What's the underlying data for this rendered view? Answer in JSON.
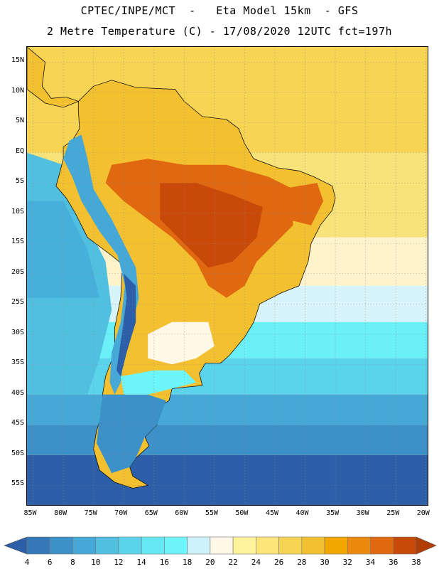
{
  "header": {
    "title_line1": "CPTEC/INPE/MCT  -   Eta Model 15km  - GFS",
    "title_line2": "2 Metre Temperature (C) - 17/08/2020 12UTC fct=197h"
  },
  "map": {
    "region": "South America",
    "lon_range": [
      -86,
      -19.5
    ],
    "lat_range": [
      -58.5,
      17.5
    ],
    "lat_ticks": [
      {
        "value": 15,
        "label": "15N"
      },
      {
        "value": 10,
        "label": "10N"
      },
      {
        "value": 5,
        "label": "5N"
      },
      {
        "value": 0,
        "label": "EQ"
      },
      {
        "value": -5,
        "label": "5S"
      },
      {
        "value": -10,
        "label": "10S"
      },
      {
        "value": -15,
        "label": "15S"
      },
      {
        "value": -20,
        "label": "20S"
      },
      {
        "value": -25,
        "label": "25S"
      },
      {
        "value": -30,
        "label": "30S"
      },
      {
        "value": -35,
        "label": "35S"
      },
      {
        "value": -40,
        "label": "40S"
      },
      {
        "value": -45,
        "label": "45S"
      },
      {
        "value": -50,
        "label": "50S"
      },
      {
        "value": -55,
        "label": "55S"
      }
    ],
    "lon_ticks": [
      {
        "value": -85,
        "label": "85W"
      },
      {
        "value": -80,
        "label": "80W"
      },
      {
        "value": -75,
        "label": "75W"
      },
      {
        "value": -70,
        "label": "70W"
      },
      {
        "value": -65,
        "label": "65W"
      },
      {
        "value": -60,
        "label": "60W"
      },
      {
        "value": -55,
        "label": "55W"
      },
      {
        "value": -50,
        "label": "50W"
      },
      {
        "value": -45,
        "label": "45W"
      },
      {
        "value": -40,
        "label": "40W"
      },
      {
        "value": -35,
        "label": "35W"
      },
      {
        "value": -30,
        "label": "30W"
      },
      {
        "value": -25,
        "label": "25W"
      },
      {
        "value": -20,
        "label": "20W"
      }
    ]
  },
  "colorbar": {
    "unit": "C",
    "levels": [
      "4",
      "6",
      "8",
      "10",
      "12",
      "14",
      "16",
      "18",
      "20",
      "22",
      "24",
      "26",
      "28",
      "30",
      "32",
      "34",
      "36",
      "38"
    ],
    "colors": [
      "#2c5fa8",
      "#3478b8",
      "#3c91c8",
      "#46a8d6",
      "#50bfe0",
      "#5ad4ea",
      "#64e8f4",
      "#6cf6fb",
      "#cdf2fb",
      "#fff8e6",
      "#fff49c",
      "#fde57a",
      "#f8d455",
      "#f3c030",
      "#f2a800",
      "#ec8a10",
      "#e06810",
      "#c94a08",
      "#b23c06"
    ]
  }
}
